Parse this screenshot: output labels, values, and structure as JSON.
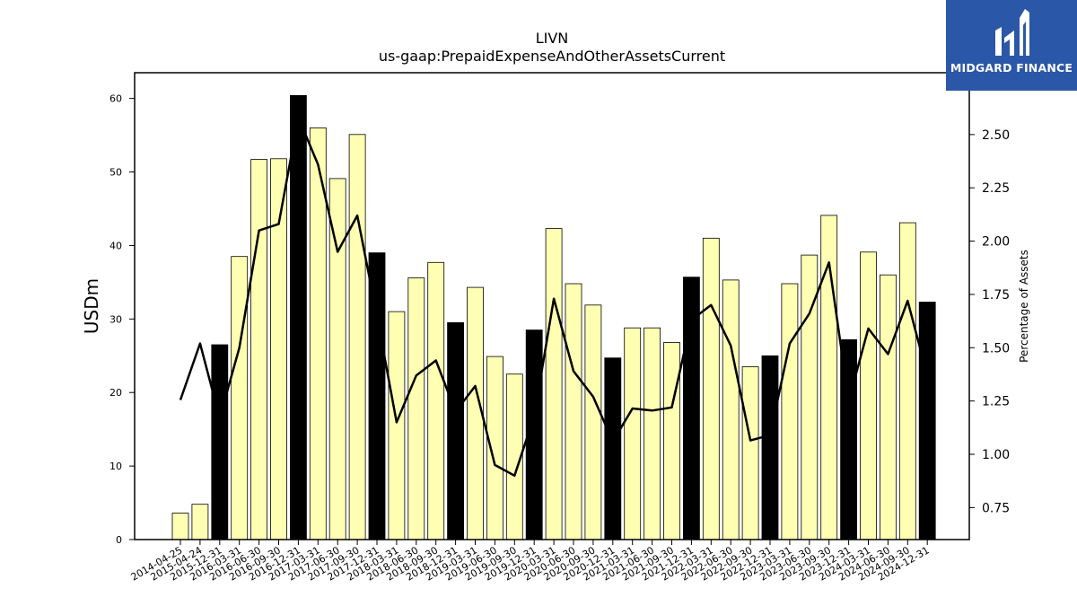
{
  "chart_data": {
    "type": "bar",
    "title": "LIVN",
    "subtitle": "us-gaap:PrepaidExpenseAndOtherAssetsCurrent",
    "ylabel": "USDm",
    "y2label": "Percentage of Assets",
    "ylim": [
      0,
      63.5
    ],
    "y2lim": [
      0.6,
      2.79
    ],
    "yticks": [
      0,
      10,
      20,
      30,
      40,
      50,
      60
    ],
    "y2ticks": [
      "0.75",
      "1.00",
      "1.25",
      "1.50",
      "1.75",
      "2.00",
      "2.25",
      "2.50"
    ],
    "categories": [
      "2014-04-25",
      "2015-04-24",
      "2015-12-31",
      "2016-03-31",
      "2016-06-30",
      "2016-09-30",
      "2016-12-31",
      "2017-03-31",
      "2017-06-30",
      "2017-09-30",
      "2017-12-31",
      "2018-03-31",
      "2018-06-30",
      "2018-09-30",
      "2018-12-31",
      "2019-03-31",
      "2019-06-30",
      "2019-09-30",
      "2019-12-31",
      "2020-03-31",
      "2020-06-30",
      "2020-09-30",
      "2020-12-31",
      "2021-03-31",
      "2021-06-30",
      "2021-09-30",
      "2021-12-31",
      "2022-03-31",
      "2022-06-30",
      "2022-09-30",
      "2022-12-31",
      "2023-03-31",
      "2023-06-30",
      "2023-09-30",
      "2023-12-31",
      "2024-03-31",
      "2024-06-30",
      "2024-09-30",
      "2024-12-31"
    ],
    "series": [
      {
        "type": "bar",
        "values": [
          3.6,
          4.8,
          26.5,
          38.5,
          51.7,
          51.8,
          60.4,
          56.0,
          49.1,
          55.1,
          39.0,
          31.0,
          35.6,
          37.7,
          29.5,
          34.3,
          24.9,
          22.5,
          28.5,
          42.3,
          34.8,
          31.9,
          24.7,
          28.8,
          28.8,
          26.8,
          35.7,
          41.0,
          35.3,
          23.5,
          25.0,
          34.8,
          38.7,
          44.1,
          27.2,
          39.1,
          36.0,
          43.1,
          32.3
        ],
        "annual": [
          false,
          false,
          true,
          false,
          false,
          false,
          true,
          false,
          false,
          false,
          true,
          false,
          false,
          false,
          true,
          false,
          false,
          false,
          true,
          false,
          false,
          false,
          true,
          false,
          false,
          false,
          true,
          false,
          false,
          false,
          true,
          false,
          false,
          false,
          true,
          false,
          false,
          false,
          true
        ]
      },
      {
        "type": "line",
        "axis": "right",
        "values": [
          1.255,
          1.52,
          1.17,
          1.5,
          2.05,
          2.08,
          2.58,
          2.36,
          1.95,
          2.12,
          1.65,
          1.15,
          1.37,
          1.44,
          1.2,
          1.32,
          0.95,
          0.9,
          1.18,
          1.73,
          1.39,
          1.27,
          1.06,
          1.215,
          1.205,
          1.22,
          1.63,
          1.7,
          1.51,
          1.065,
          1.09,
          1.52,
          1.66,
          1.9,
          1.25,
          1.59,
          1.47,
          1.72,
          1.37
        ]
      }
    ],
    "colors": {
      "bar_quarter": "#ffffb3",
      "bar_annual": "#000000",
      "line": "#000000"
    }
  },
  "logo": {
    "text": "MIDGARD FINANCE"
  }
}
